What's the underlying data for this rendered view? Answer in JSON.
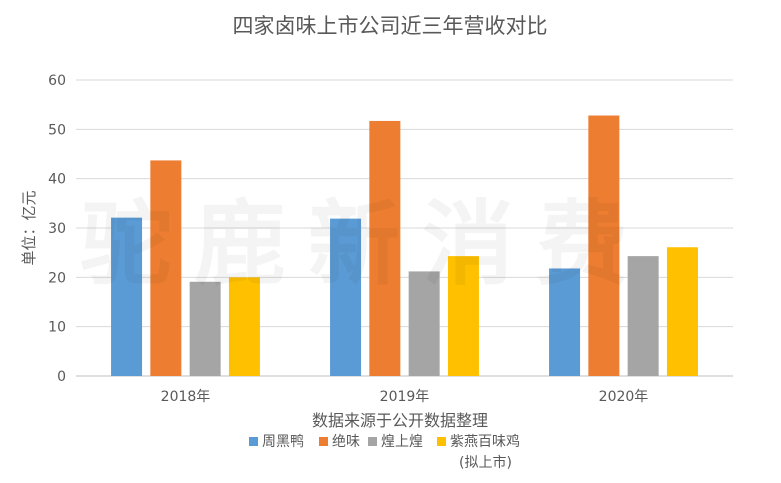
{
  "chart_data": {
    "type": "bar",
    "title": "四家卤味上市公司近三年营收对比",
    "ylabel": "单位：亿元",
    "xlabel": "数据来源于公开数据整理",
    "categories": [
      "2018年",
      "2019年",
      "2020年"
    ],
    "ylim": [
      0,
      60
    ],
    "yticks": [
      0,
      10,
      20,
      30,
      40,
      50,
      60
    ],
    "grid": true,
    "legend_position": "bottom",
    "series": [
      {
        "name": "周黑鸭",
        "values": [
          32.1,
          31.9,
          21.8
        ],
        "color": "#5b9bd5"
      },
      {
        "name": "绝味",
        "values": [
          43.7,
          51.7,
          52.8
        ],
        "color": "#ed7d31"
      },
      {
        "name": "煌上煌",
        "values": [
          19.1,
          21.2,
          24.3
        ],
        "color": "#a5a5a5"
      },
      {
        "name": "紫燕百味鸡",
        "note": "(拟上市)",
        "values": [
          20.0,
          24.3,
          26.1
        ],
        "color": "#ffc000"
      }
    ]
  },
  "watermark": "驼鹿新消费"
}
